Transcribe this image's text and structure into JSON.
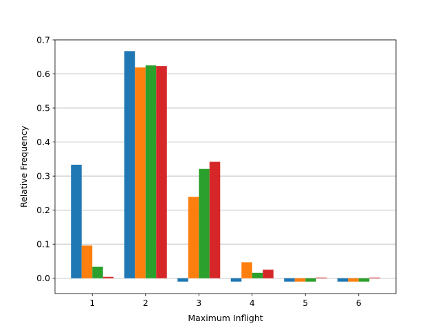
{
  "chart_data": {
    "type": "bar",
    "title": "",
    "xlabel": "Maximum Inflight",
    "ylabel": "Relative Frequency",
    "categories": [
      "1",
      "2",
      "3",
      "4",
      "5",
      "6"
    ],
    "ylim": [
      -0.045,
      0.7
    ],
    "yticks": [
      "0.0",
      "0.1",
      "0.2",
      "0.3",
      "0.4",
      "0.5",
      "0.6",
      "0.7"
    ],
    "grid": "horizontal",
    "series": [
      {
        "color": "#1f77b4",
        "values": [
          0.333,
          0.667,
          -0.01,
          -0.01,
          -0.01,
          -0.01
        ]
      },
      {
        "color": "#ff7f0e",
        "values": [
          0.096,
          0.619,
          0.239,
          0.047,
          -0.01,
          -0.01
        ]
      },
      {
        "color": "#2ca02c",
        "values": [
          0.034,
          0.625,
          0.321,
          0.016,
          -0.01,
          -0.01
        ]
      },
      {
        "color": "#d62728",
        "values": [
          0.004,
          0.623,
          0.342,
          0.025,
          0.002,
          0.002
        ]
      }
    ]
  }
}
